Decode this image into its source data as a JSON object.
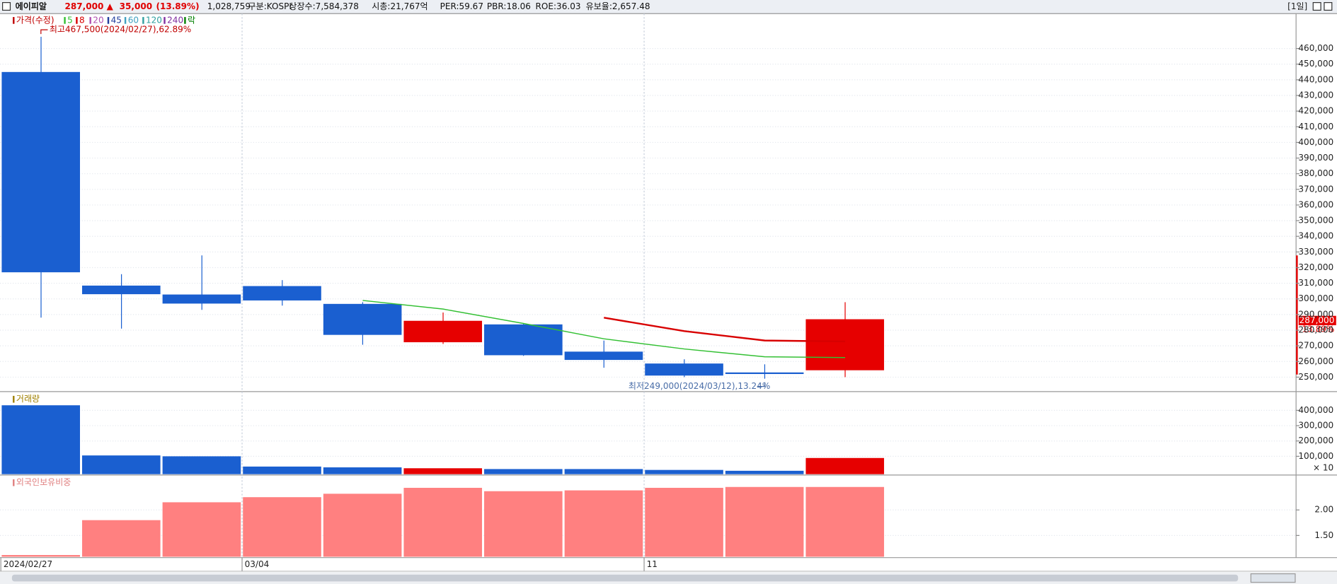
{
  "header": {
    "items": [
      "에이피알",
      "287,000",
      "▲",
      "35,000",
      "(13.89%)",
      "1,028,759",
      "구분:KOSPI",
      "상장수:7,584,378",
      "시총:21,767억",
      "PER:59.67",
      "PBR:18.06",
      "ROE:36.03",
      "유보율:2,657.48"
    ],
    "period": "[1일]"
  },
  "chart_data": [
    {
      "type": "candlestick",
      "price_label": "가격(수정)",
      "lock_label": "락",
      "categories": [
        "2024/02/27",
        null,
        null,
        "03/04",
        null,
        null,
        null,
        null,
        "11",
        null,
        null
      ],
      "open": [
        445000,
        308500,
        302800,
        308200,
        296800,
        272300,
        283700,
        266300,
        258700,
        253000,
        254400
      ],
      "high": [
        467500,
        315800,
        327800,
        312000,
        297900,
        291300,
        284300,
        273400,
        261400,
        258200,
        297900
      ],
      "low": [
        288000,
        281000,
        293000,
        295700,
        270700,
        271200,
        263600,
        256000,
        250000,
        249000,
        250000
      ],
      "close": [
        317000,
        303000,
        297000,
        299000,
        277000,
        286000,
        264000,
        261000,
        251000,
        252000,
        287000
      ],
      "up_color": "#e60000",
      "down_color": "#1a5fd0",
      "series": [
        {
          "name": "5",
          "color": "#33c033",
          "values": [
            null,
            null,
            null,
            null,
            299000,
            293500,
            284300,
            274500,
            268000,
            263000,
            262500
          ]
        },
        {
          "name": "8",
          "color": "#d80000",
          "values": [
            null,
            null,
            null,
            null,
            null,
            null,
            null,
            288000,
            279400,
            273400,
            272800
          ]
        },
        {
          "name": "20",
          "color": "#b050b0",
          "values": [
            null,
            null,
            null,
            null,
            null,
            null,
            null,
            null,
            null,
            null,
            null
          ]
        },
        {
          "name": "45",
          "color": "#203c9c",
          "values": [
            null,
            null,
            null,
            null,
            null,
            null,
            null,
            null,
            null,
            null,
            null
          ]
        },
        {
          "name": "60",
          "color": "#40a0c0",
          "values": [
            null,
            null,
            null,
            null,
            null,
            null,
            null,
            null,
            null,
            null,
            null
          ]
        },
        {
          "name": "120",
          "color": "#30a0a0",
          "values": [
            null,
            null,
            null,
            null,
            null,
            null,
            null,
            null,
            null,
            null,
            null
          ]
        },
        {
          "name": "240",
          "color": "#8030a0",
          "values": [
            null,
            null,
            null,
            null,
            null,
            null,
            null,
            null,
            null,
            null,
            null
          ]
        }
      ],
      "annotations": [
        "최고467,500(2024/02/27),62.89%",
        "최저249,000(2024/03/12),13.24%"
      ],
      "price_tag": [
        "287,000",
        "13.89%"
      ],
      "ylim": [
        241300,
        482300
      ],
      "yticks": [
        {
          "value": 250000,
          "label": "250,000"
        },
        {
          "value": 260000,
          "label": "260,000"
        },
        {
          "value": 270000,
          "label": "270,000"
        },
        {
          "value": 280000,
          "label": "280,000"
        },
        {
          "value": 290000,
          "label": "290,000"
        },
        {
          "value": 300000,
          "label": "300,000"
        },
        {
          "value": 310000,
          "label": "310,000"
        },
        {
          "value": 320000,
          "label": "320,000"
        },
        {
          "value": 330000,
          "label": "330,000"
        },
        {
          "value": 340000,
          "label": "340,000"
        },
        {
          "value": 350000,
          "label": "350,000"
        },
        {
          "value": 360000,
          "label": "360,000"
        },
        {
          "value": 370000,
          "label": "370,000"
        },
        {
          "value": 380000,
          "label": "380,000"
        },
        {
          "value": 390000,
          "label": "390,000"
        },
        {
          "value": 400000,
          "label": "400,000"
        },
        {
          "value": 410000,
          "label": "410,000"
        },
        {
          "value": 420000,
          "label": "420,000"
        },
        {
          "value": 430000,
          "label": "430,000"
        },
        {
          "value": 440000,
          "label": "440,000"
        },
        {
          "value": 450000,
          "label": "450,000"
        },
        {
          "value": 460000,
          "label": "460,000"
        }
      ],
      "grid": true
    },
    {
      "type": "bar",
      "title": "거래량",
      "unit_label": "× 10",
      "values": [
        433000,
        105600,
        100000,
        33000,
        27800,
        22000,
        16700,
        16700,
        11000,
        5500,
        89000
      ],
      "colors": [
        "#1a5fd0",
        "#1a5fd0",
        "#1a5fd0",
        "#1a5fd0",
        "#1a5fd0",
        "#e60000",
        "#1a5fd0",
        "#1a5fd0",
        "#1a5fd0",
        "#1a5fd0",
        "#e60000"
      ],
      "ylim": [
        -16700,
        516700
      ],
      "yticks": [
        {
          "value": 100000,
          "label": "100,000"
        },
        {
          "value": 200000,
          "label": "200,000"
        },
        {
          "value": 300000,
          "label": "300,000"
        },
        {
          "value": 400000,
          "label": "400,000"
        }
      ],
      "grid": true
    },
    {
      "type": "bar",
      "title": "외국인보유비중",
      "values": [
        1.117,
        1.8,
        2.15,
        2.25,
        2.317,
        2.433,
        2.367,
        2.383,
        2.433,
        2.45,
        2.45
      ],
      "color": "#ff8080",
      "ylim": [
        1.083,
        2.667
      ],
      "yticks": [
        {
          "value": 1.5,
          "label": "1.50"
        },
        {
          "value": 2.0,
          "label": "2.00"
        }
      ],
      "grid": true
    }
  ]
}
